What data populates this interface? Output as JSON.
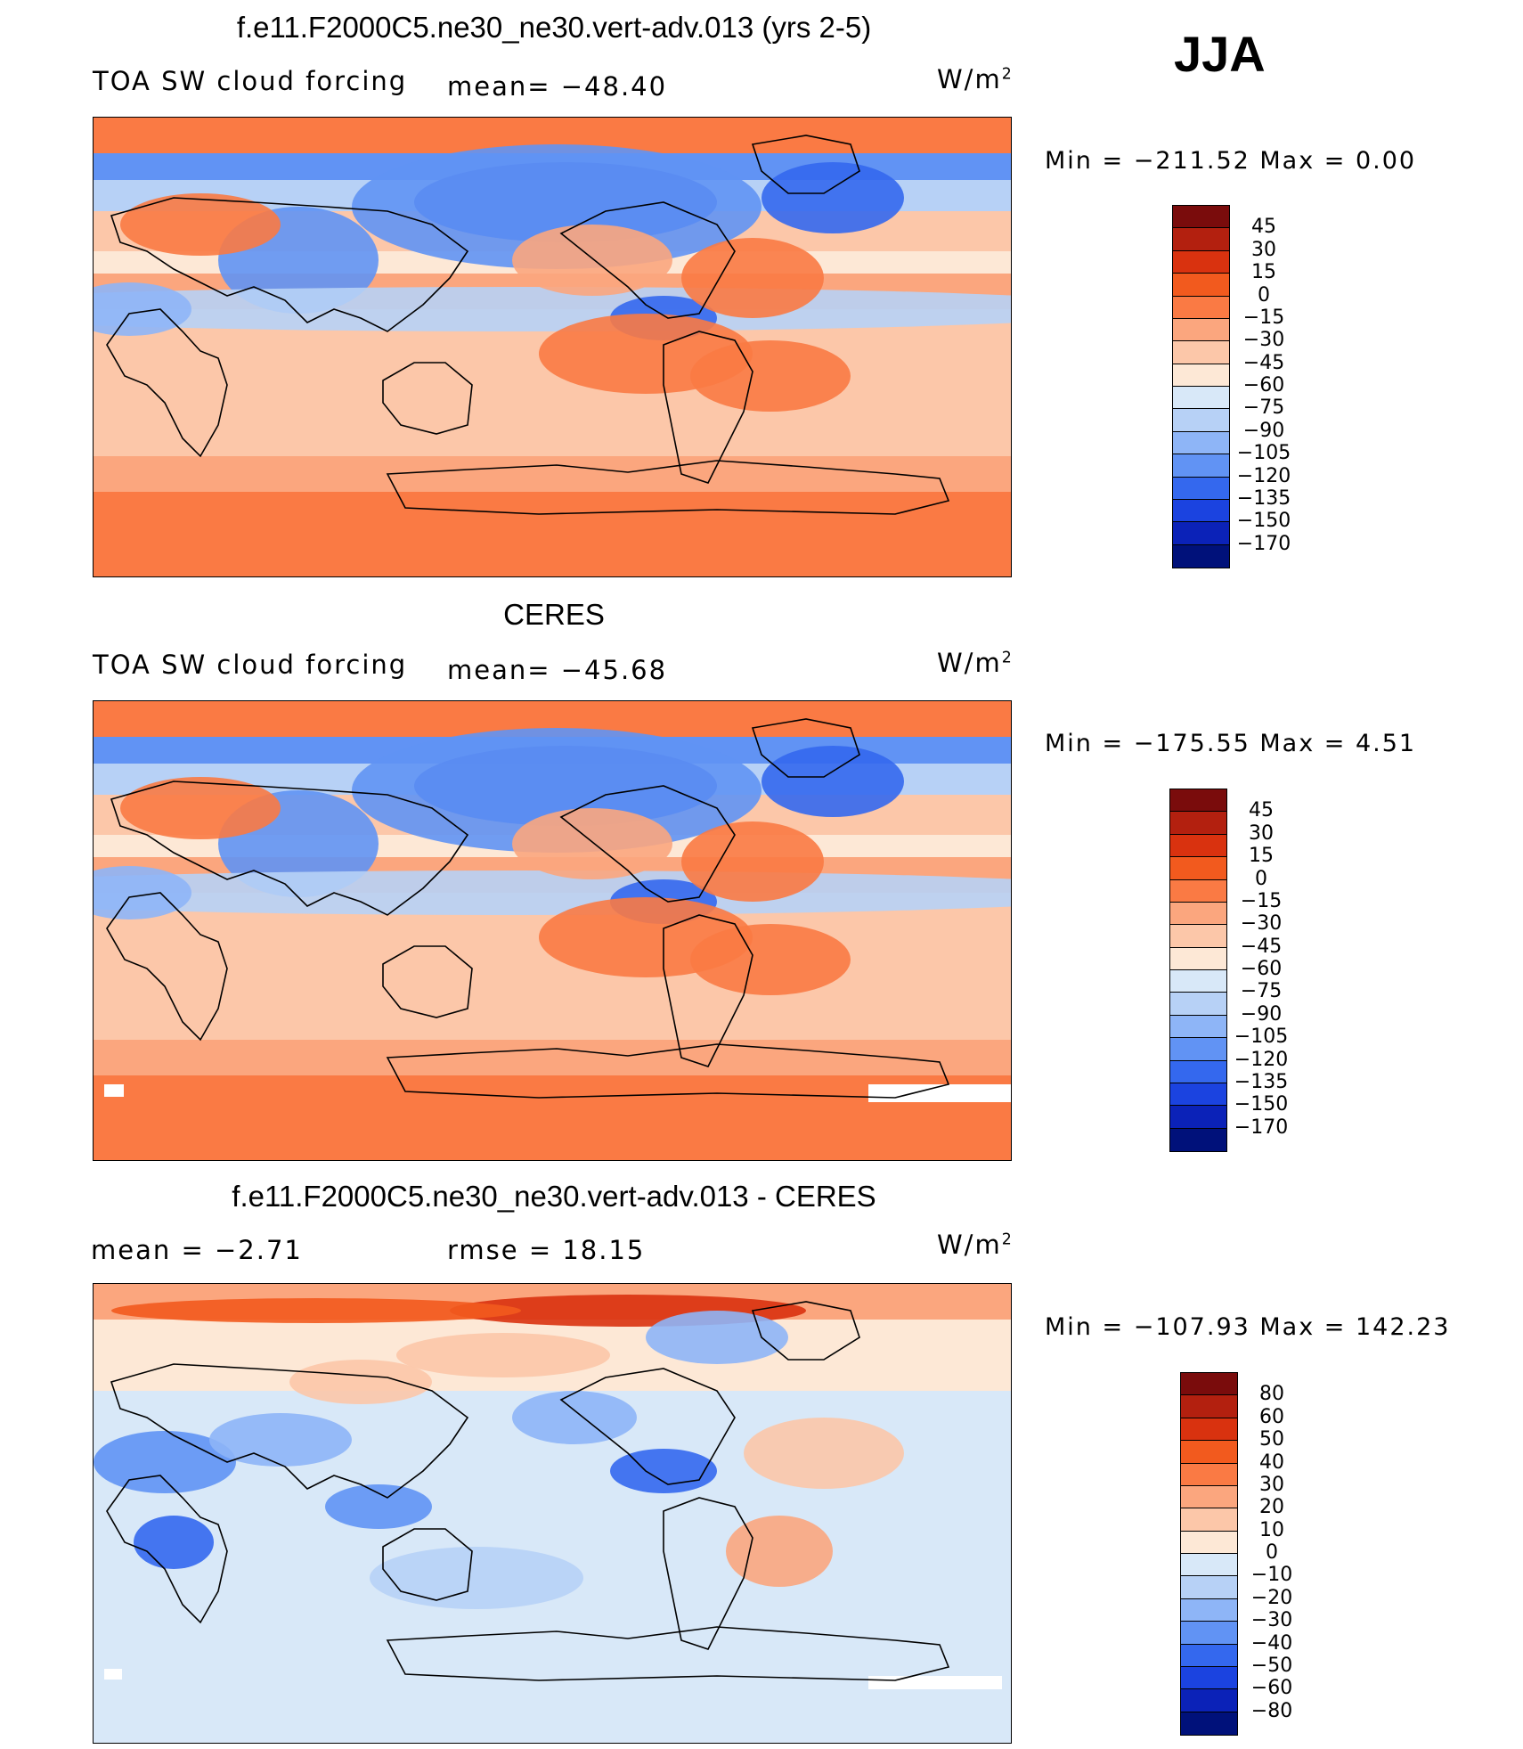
{
  "season": "JJA",
  "panels": [
    {
      "title": "f.e11.F2000C5.ne30_ne30.vert-adv.013 (yrs 2-5)",
      "left_label": "TOA SW cloud forcing",
      "center_label": "mean=  −48.40",
      "units_base": "W/m",
      "units_exp": "2",
      "min_label": "Min  =  −211.52  Max  =      0.00"
    },
    {
      "title": "CERES",
      "left_label": "TOA SW cloud forcing",
      "center_label": "mean=  −45.68",
      "units_base": "W/m",
      "units_exp": "2",
      "min_label": "Min  =  −175.55  Max  =      4.51"
    },
    {
      "title": "f.e11.F2000C5.ne30_ne30.vert-adv.013 - CERES",
      "left_label": "mean  =     −2.71",
      "center_label": "rmse  =    18.15",
      "units_base": "W/m",
      "units_exp": "2",
      "min_label": "Min  =  −107.93  Max  =  142.23"
    }
  ],
  "chart_data": [
    {
      "type": "heatmap",
      "title": "f.e11.F2000C5.ne30_ne30.vert-adv.013 (yrs 2-5)",
      "variable": "TOA SW cloud forcing",
      "units": "W/m2",
      "mean": -48.4,
      "min": -211.52,
      "max": 0.0,
      "colorbar_levels": [
        "45",
        "30",
        "15",
        "0",
        "−15",
        "−30",
        "−45",
        "−60",
        "−75",
        "−90",
        "−105",
        "−120",
        "−135",
        "−150",
        "−170"
      ],
      "colorbar_colors": [
        "#7a0c0c",
        "#b3200f",
        "#d9320f",
        "#f25a1e",
        "#fa7a44",
        "#fba67e",
        "#fcc7a9",
        "#fde8d6",
        "#d8e8f8",
        "#b7d1f6",
        "#8eb5f7",
        "#6193f4",
        "#3468ee",
        "#1b43e0",
        "#0b22b8",
        "#00117a"
      ]
    },
    {
      "type": "heatmap",
      "title": "CERES",
      "variable": "TOA SW cloud forcing",
      "units": "W/m2",
      "mean": -45.68,
      "min": -175.55,
      "max": 4.51,
      "colorbar_levels": [
        "45",
        "30",
        "15",
        "0",
        "−15",
        "−30",
        "−45",
        "−60",
        "−75",
        "−90",
        "−105",
        "−120",
        "−135",
        "−150",
        "−170"
      ],
      "colorbar_colors": [
        "#7a0c0c",
        "#b3200f",
        "#d9320f",
        "#f25a1e",
        "#fa7a44",
        "#fba67e",
        "#fcc7a9",
        "#fde8d6",
        "#d8e8f8",
        "#b7d1f6",
        "#8eb5f7",
        "#6193f4",
        "#3468ee",
        "#1b43e0",
        "#0b22b8",
        "#00117a"
      ]
    },
    {
      "type": "heatmap",
      "title": "f.e11.F2000C5.ne30_ne30.vert-adv.013 - CERES",
      "units": "W/m2",
      "mean": -2.71,
      "rmse": 18.15,
      "min": -107.93,
      "max": 142.23,
      "colorbar_levels": [
        "80",
        "60",
        "50",
        "40",
        "30",
        "20",
        "10",
        "0",
        "−10",
        "−20",
        "−30",
        "−40",
        "−50",
        "−60",
        "−80"
      ],
      "colorbar_colors": [
        "#7a0c0c",
        "#b3200f",
        "#d9320f",
        "#f25a1e",
        "#fa7a44",
        "#fba67e",
        "#fcc7a9",
        "#fde8d6",
        "#d8e8f8",
        "#b7d1f6",
        "#8eb5f7",
        "#6193f4",
        "#3468ee",
        "#1b43e0",
        "#0b22b8",
        "#00117a"
      ]
    }
  ]
}
